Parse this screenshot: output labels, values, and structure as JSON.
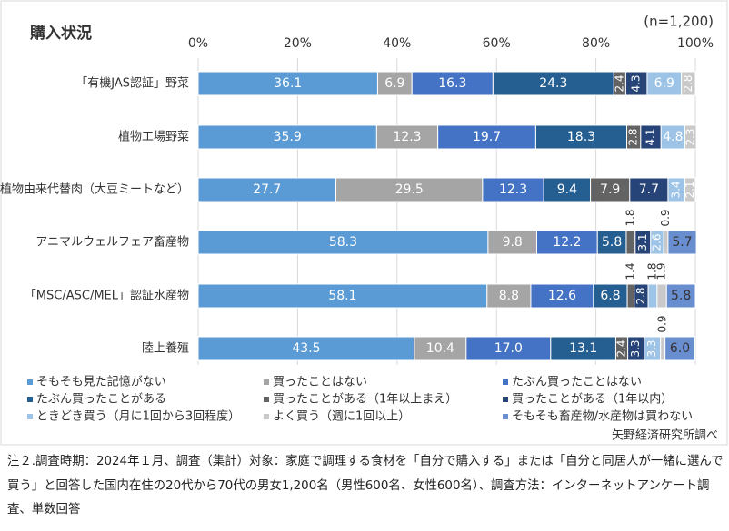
{
  "chart_data": {
    "type": "stacked-bar-horizontal",
    "title": "購入状況",
    "subtitle": "(n=1,200)",
    "categories": [
      "「有機JAS認証」野菜",
      "植物工場野菜",
      "植物由来代替肉（大豆ミートなど）",
      "アニマルウェルフェア畜産物",
      "「MSC/ASC/MEL」認証水産物",
      "陸上養殖"
    ],
    "xlim": [
      0,
      100
    ],
    "xticks": [
      {
        "value": 0,
        "label": "0%"
      },
      {
        "value": 20,
        "label": "20%"
      },
      {
        "value": 40,
        "label": "40%"
      },
      {
        "value": 60,
        "label": "60%"
      },
      {
        "value": 80,
        "label": "80%"
      },
      {
        "value": 100,
        "label": "100%"
      }
    ],
    "grid": true,
    "series": [
      {
        "name": "そもそも見た記憶がない",
        "color": "#5b9bd5",
        "values": [
          36.1,
          35.9,
          27.7,
          58.3,
          58.1,
          43.5
        ],
        "value_labels": [
          "36.1",
          "35.9",
          "27.7",
          "58.3",
          "58.1",
          "43.5"
        ]
      },
      {
        "name": "買ったことはない",
        "color": "#a5a5a5",
        "values": [
          6.9,
          12.3,
          29.5,
          9.8,
          8.8,
          10.4
        ],
        "value_labels": [
          "6.9",
          "12.3",
          "29.5",
          "9.8",
          "8.8",
          "10.4"
        ]
      },
      {
        "name": "たぶん買ったことはない",
        "color": "#4472c4",
        "values": [
          16.3,
          19.7,
          12.3,
          12.2,
          12.6,
          17.0
        ],
        "value_labels": [
          "16.3",
          "19.7",
          "12.3",
          "12.2",
          "12.6",
          "17.0"
        ]
      },
      {
        "name": "たぶん買ったことがある",
        "color": "#255e91",
        "values": [
          24.3,
          18.3,
          9.4,
          5.8,
          6.8,
          13.1
        ],
        "value_labels": [
          "24.3",
          "18.3",
          "9.4",
          "5.8",
          "6.8",
          "13.1"
        ]
      },
      {
        "name": "買ったことがある（1年以上まえ）",
        "color": "#636363",
        "values": [
          2.4,
          2.8,
          7.9,
          1.8,
          1.4,
          2.4
        ],
        "value_labels": [
          "2.4",
          "2.8",
          "7.9",
          "1.8",
          "1.4",
          "2.4"
        ]
      },
      {
        "name": "買ったことがある（1年以内）",
        "color": "#264478",
        "values": [
          4.3,
          4.1,
          7.7,
          3.1,
          2.8,
          3.3
        ],
        "value_labels": [
          "4.3",
          "4.1",
          "7.7",
          "3.1",
          "2.8",
          "3.3"
        ]
      },
      {
        "name": "ときどき買う（月に1回から3回程度）",
        "color": "#9dc3e6",
        "values": [
          6.9,
          4.8,
          3.4,
          2.6,
          1.8,
          3.3
        ],
        "value_labels": [
          "6.9",
          "4.8",
          "3.4",
          "2.6",
          "1.8",
          "3.3"
        ]
      },
      {
        "name": "よく買う（週に1回以上）",
        "color": "#c9c9c9",
        "values": [
          2.8,
          2.3,
          2.1,
          0.9,
          1.9,
          0.9
        ],
        "value_labels": [
          "2.8",
          "2.3",
          "2.1",
          "0.9",
          "1.9",
          "0.9"
        ]
      },
      {
        "name": "そもそも畜産物/水産物は買わない",
        "color": "#698ed0",
        "values": [
          null,
          null,
          null,
          5.7,
          5.8,
          6.0
        ],
        "value_labels": [
          null,
          null,
          null,
          "5.7",
          "5.8",
          "6.0"
        ]
      }
    ],
    "source": "矢野経済研究所調べ"
  },
  "note": "注２.調査時期：2024年１月、調査（集計）対象：家庭で調理する食材を「自分で購入する」または「自分と同居人が一緒に選んで買う」と回答した国内在住の20代から70代の男女1,200名（男性600名、女性600名）、調査方法：インターネットアンケート調査、単数回答"
}
